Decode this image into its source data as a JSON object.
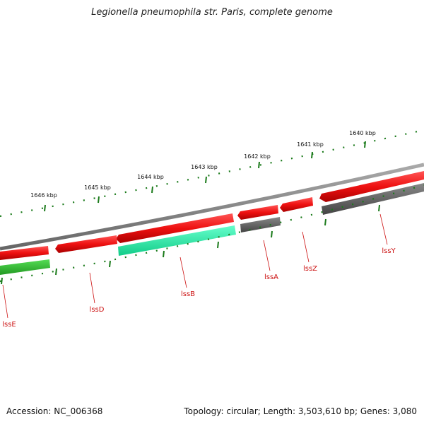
{
  "title": "Legionella pneumophila str. Paris, complete genome",
  "footer": {
    "accession": "Accession: NC_006368",
    "summary": "Topology: circular; Length: 3,503,610 bp; Genes: 3,080"
  },
  "ticks": [
    "1640 kbp",
    "1641 kbp",
    "1642 kbp",
    "1643 kbp",
    "1644 kbp",
    "1645 kbp",
    "1646 kbp"
  ],
  "genes": [
    "lssY",
    "lssZ",
    "lssA",
    "lssB",
    "lssD",
    "lssE"
  ],
  "colors": {
    "cds_red": "#ee1111",
    "rna_green": "#33bb33",
    "cyan": "#22eeaa",
    "gray": "#666666",
    "backbone": "#888888",
    "tick_green": "#1a7a1a",
    "label_red": "#cc1111"
  }
}
